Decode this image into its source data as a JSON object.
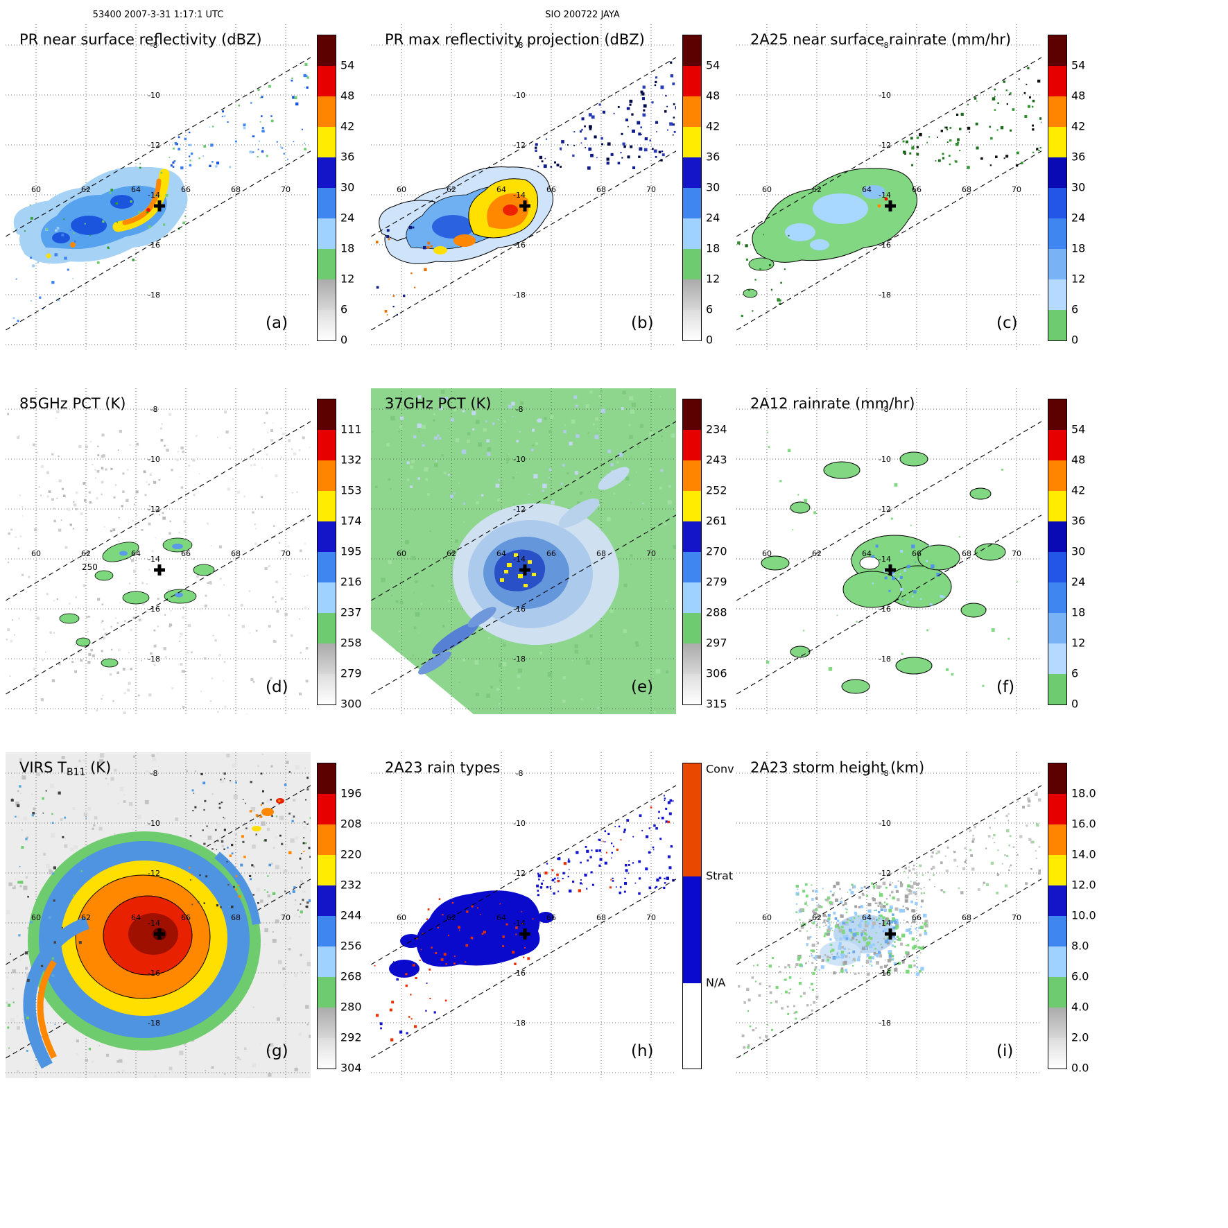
{
  "header": {
    "left": "53400 2007-3-31 1:17:1 UTC",
    "center": "SIO 200722 JAYA"
  },
  "axes": {
    "lon_ticks": [
      "60",
      "62",
      "64",
      "66",
      "68",
      "70"
    ],
    "lat_ticks": [
      "-8",
      "-10",
      "-12",
      "-14",
      "-16",
      "-18"
    ]
  },
  "marker": {
    "symbol": "+",
    "approx_lon": 64.9,
    "approx_lat": -14.4
  },
  "panels": [
    {
      "id": "a",
      "letter": "(a)",
      "title": "PR near surface reflectivity (dBZ)",
      "colorbar": {
        "type": "gradient",
        "ticks": [
          "54",
          "48",
          "42",
          "36",
          "30",
          "24",
          "18",
          "12",
          "6",
          "0"
        ],
        "zones": [
          "#5c0000",
          "#e60000",
          "#ff8400",
          "#ffec00",
          "#1414c8",
          "#3f86f0",
          "#a0d2ff",
          "#6fcb6f",
          "linear-gradient(180deg,#ababab,#d6d6d6)",
          "linear-gradient(180deg,#dddddd,#ffffff)"
        ]
      }
    },
    {
      "id": "b",
      "letter": "(b)",
      "title": "PR max reflectivity projection (dBZ)",
      "colorbar": {
        "type": "gradient",
        "ticks": [
          "54",
          "48",
          "42",
          "36",
          "30",
          "24",
          "18",
          "12",
          "6",
          "0"
        ],
        "zones": [
          "#5c0000",
          "#e60000",
          "#ff8400",
          "#ffec00",
          "#1414c8",
          "#3f86f0",
          "#a0d2ff",
          "#6fcb6f",
          "linear-gradient(180deg,#ababab,#d6d6d6)",
          "linear-gradient(180deg,#dddddd,#ffffff)"
        ]
      }
    },
    {
      "id": "c",
      "letter": "(c)",
      "title": "2A25 near surface rainrate (mm/hr)",
      "colorbar": {
        "type": "gradient",
        "ticks": [
          "54",
          "48",
          "42",
          "36",
          "30",
          "24",
          "18",
          "12",
          "6",
          "0"
        ],
        "zones": [
          "#5c0000",
          "#e60000",
          "#ff8400",
          "#ffec00",
          "#0a0ab4",
          "#2356e6",
          "#3f86f0",
          "#7ab2f6",
          "#b6daff",
          "#6fcb6f"
        ]
      }
    },
    {
      "id": "d",
      "letter": "(d)",
      "title": "85GHz PCT (K)",
      "annotation": "250",
      "colorbar": {
        "type": "gradient",
        "ticks": [
          "111",
          "132",
          "153",
          "174",
          "195",
          "216",
          "237",
          "258",
          "279",
          "300"
        ],
        "zones": [
          "#5c0000",
          "#e60000",
          "#ff8400",
          "#ffec00",
          "#1414c8",
          "#3f86f0",
          "#a0d2ff",
          "#6fcb6f",
          "linear-gradient(180deg,#ababab,#d6d6d6)",
          "linear-gradient(180deg,#dddddd,#ffffff)"
        ]
      }
    },
    {
      "id": "e",
      "letter": "(e)",
      "title": "37GHz PCT (K)",
      "colorbar": {
        "type": "gradient",
        "ticks": [
          "234",
          "243",
          "252",
          "261",
          "270",
          "279",
          "288",
          "297",
          "306",
          "315"
        ],
        "zones": [
          "#5c0000",
          "#e60000",
          "#ff8400",
          "#ffec00",
          "#1414c8",
          "#3f86f0",
          "#a0d2ff",
          "#6fcb6f",
          "linear-gradient(180deg,#ababab,#d6d6d6)",
          "linear-gradient(180deg,#dddddd,#ffffff)"
        ]
      }
    },
    {
      "id": "f",
      "letter": "(f)",
      "title": "2A12 rainrate (mm/hr)",
      "colorbar": {
        "type": "gradient",
        "ticks": [
          "54",
          "48",
          "42",
          "36",
          "30",
          "24",
          "18",
          "12",
          "6",
          "0"
        ],
        "zones": [
          "#5c0000",
          "#e60000",
          "#ff8400",
          "#ffec00",
          "#0a0ab4",
          "#2356e6",
          "#3f86f0",
          "#7ab2f6",
          "#b6daff",
          "#6fcb6f"
        ]
      }
    },
    {
      "id": "g",
      "letter": "(g)",
      "title_prefix": "VIRS T",
      "title_sub": "B11",
      "title_suffix": " (K)",
      "colorbar": {
        "type": "gradient",
        "ticks": [
          "196",
          "208",
          "220",
          "232",
          "244",
          "256",
          "268",
          "280",
          "292",
          "304"
        ],
        "zones": [
          "#5c0000",
          "#e60000",
          "#ff8400",
          "#ffec00",
          "#1414c8",
          "#3f86f0",
          "#a0d2ff",
          "#6fcb6f",
          "linear-gradient(180deg,#ababab,#d6d6d6)",
          "linear-gradient(180deg,#dddddd,#ffffff)"
        ]
      }
    },
    {
      "id": "h",
      "letter": "(h)",
      "title": "2A23 rain types",
      "colorbar": {
        "type": "category",
        "segments": [
          {
            "label": "Conv",
            "color": "#e84800",
            "frac": 0.37
          },
          {
            "label": "Strat",
            "color": "#0a0acf",
            "frac": 0.35
          },
          {
            "label": "N/A",
            "color": "#ffffff",
            "frac": 0.28
          }
        ]
      }
    },
    {
      "id": "i",
      "letter": "(i)",
      "title": "2A23 storm height (km)",
      "colorbar": {
        "type": "gradient",
        "ticks": [
          "18.0",
          "16.0",
          "14.0",
          "12.0",
          "10.0",
          "8.0",
          "6.0",
          "4.0",
          "2.0",
          "0.0"
        ],
        "zones": [
          "#5c0000",
          "#e60000",
          "#ff8400",
          "#ffec00",
          "#1414c8",
          "#3f86f0",
          "#a0d2ff",
          "#6fcb6f",
          "linear-gradient(180deg,#ababab,#d6d6d6)",
          "linear-gradient(180deg,#dddddd,#ffffff)"
        ]
      }
    }
  ],
  "chart_data": [
    {
      "panel": "a",
      "type": "heatmap",
      "title": "PR near surface reflectivity",
      "units": "dBZ",
      "value_ticks": [
        0,
        6,
        12,
        18,
        24,
        30,
        36,
        42,
        48,
        54
      ],
      "extent": {
        "lon": [
          58.8,
          71.0
        ],
        "lat": [
          -20.2,
          -7.2
        ]
      },
      "grid": {
        "lon": [
          60,
          62,
          64,
          66,
          68,
          70
        ],
        "lat": [
          -8,
          -10,
          -12,
          -14,
          -16,
          -18
        ]
      },
      "description": "Narrow PR swath SW-NE; 18-35 dBZ rainband west/northwest of center with an embedded 36-48 dBZ arc; scattered weak echoes along northeast half of swath."
    },
    {
      "panel": "b",
      "type": "heatmap",
      "title": "PR max reflectivity projection",
      "units": "dBZ",
      "value_ticks": [
        0,
        6,
        12,
        18,
        24,
        30,
        36,
        42,
        48,
        54
      ],
      "extent": {
        "lon": [
          58.8,
          71.0
        ],
        "lat": [
          -20.2,
          -7.2
        ]
      },
      "grid": {
        "lon": [
          60,
          62,
          64,
          66,
          68,
          70
        ],
        "lat": [
          -8,
          -10,
          -12,
          -14,
          -16,
          -18
        ]
      },
      "description": "Column-maximum reflectivity; same swath with broader black-contoured echoes and a large 36-48 dBZ yellow/orange region near the storm center."
    },
    {
      "panel": "c",
      "type": "heatmap",
      "title": "2A25 near surface rainrate",
      "units": "mm/hr",
      "value_ticks": [
        0,
        6,
        12,
        18,
        24,
        30,
        36,
        42,
        48,
        54
      ],
      "extent": {
        "lon": [
          58.8,
          71.0
        ],
        "lat": [
          -20.2,
          -7.2
        ]
      },
      "grid": {
        "lon": [
          60,
          62,
          64,
          66,
          68,
          70
        ],
        "lat": [
          -8,
          -10,
          -12,
          -14,
          -16,
          -18
        ]
      },
      "description": "Rain area mostly 0-6 mm/hr (green) with embedded 6-18 mm/hr light-blue patches and a few isolated heavier pixels near the center."
    },
    {
      "panel": "d",
      "type": "heatmap",
      "title": "85GHz PCT",
      "units": "K",
      "value_ticks": [
        111,
        132,
        153,
        174,
        195,
        216,
        237,
        258,
        279,
        300
      ],
      "extent": {
        "lon": [
          58.8,
          71.0
        ],
        "lat": [
          -20.2,
          -7.2
        ]
      },
      "grid": {
        "lon": [
          60,
          62,
          64,
          66,
          68,
          70
        ],
        "lat": [
          -8,
          -10,
          -12,
          -14,
          -16,
          -18
        ]
      },
      "contour_label": "250",
      "description": "Wide TMI swath, mostly 280-300 K (white/gray); depressed PCT 216-258 K (green with blue cores) in a broken eyewall ring; 250 K contour labeled."
    },
    {
      "panel": "e",
      "type": "heatmap",
      "title": "37GHz PCT",
      "units": "K",
      "value_ticks": [
        234,
        243,
        252,
        261,
        270,
        279,
        288,
        297,
        306,
        315
      ],
      "extent": {
        "lon": [
          58.8,
          71.0
        ],
        "lat": [
          -20.2,
          -7.2
        ]
      },
      "grid": {
        "lon": [
          60,
          62,
          64,
          66,
          68,
          70
        ],
        "lat": [
          -8,
          -10,
          -12,
          -14,
          -16,
          -18
        ]
      },
      "description": "Background ocean ~288-297 K (green); 261-279 K blue region over the storm with a dark-blue core and scattered yellow (252-261 K) eyewall pixels."
    },
    {
      "panel": "f",
      "type": "heatmap",
      "title": "2A12 rainrate",
      "units": "mm/hr",
      "value_ticks": [
        0,
        6,
        12,
        18,
        24,
        30,
        36,
        42,
        48,
        54
      ],
      "extent": {
        "lon": [
          58.8,
          71.0
        ],
        "lat": [
          -20.2,
          -7.2
        ]
      },
      "grid": {
        "lon": [
          60,
          62,
          64,
          66,
          68,
          70
        ],
        "lat": [
          -8,
          -10,
          -12,
          -14,
          -16,
          -18
        ]
      },
      "description": "TMI rain area 0-6 mm/hr (green) in rainbands around the center with embedded 6-12 mm/hr light-blue speckles; black contours outline rain regions."
    },
    {
      "panel": "g",
      "type": "heatmap",
      "title": "VIRS T_B11",
      "units": "K",
      "value_ticks": [
        196,
        208,
        220,
        232,
        244,
        256,
        268,
        280,
        292,
        304
      ],
      "extent": {
        "lon": [
          58.8,
          71.0
        ],
        "lat": [
          -20.2,
          -7.2
        ]
      },
      "grid": {
        "lon": [
          60,
          62,
          64,
          66,
          68,
          70
        ],
        "lat": [
          -8,
          -10,
          -12,
          -14,
          -16,
          -18
        ]
      },
      "description": "11-micron brightness temperature; cold central dense overcast below 208 K (red/dark red) ringed by 208-232 K orange/yellow, 232-268 K blue ring, warm gray environment with banding."
    },
    {
      "panel": "h",
      "type": "categorical",
      "title": "2A23 rain types",
      "categories": [
        "Conv",
        "Strat",
        "N/A"
      ],
      "extent": {
        "lon": [
          58.8,
          71.0
        ],
        "lat": [
          -20.2,
          -7.2
        ]
      },
      "grid": {
        "lon": [
          60,
          62,
          64,
          66,
          68,
          70
        ],
        "lat": [
          -8,
          -10,
          -12,
          -14,
          -16,
          -18
        ]
      },
      "description": "Mostly stratiform (blue) echo mass west of center with scattered convective (red-orange) pixels inside and along the southwest edge; sparse pixels northeast."
    },
    {
      "panel": "i",
      "type": "heatmap",
      "title": "2A23 storm height",
      "units": "km",
      "value_ticks": [
        0,
        2,
        4,
        6,
        8,
        10,
        12,
        14,
        16,
        18
      ],
      "extent": {
        "lon": [
          58.8,
          71.0
        ],
        "lat": [
          -20.2,
          -7.2
        ]
      },
      "grid": {
        "lon": [
          60,
          62,
          64,
          66,
          68,
          70
        ],
        "lat": [
          -8,
          -10,
          -12,
          -14,
          -16,
          -18
        ]
      },
      "description": "Storm heights mostly 2-6 km (gray/green speckle) with 6-10 km light-blue patches near the center; sparse low tops along the northeast swath."
    }
  ]
}
